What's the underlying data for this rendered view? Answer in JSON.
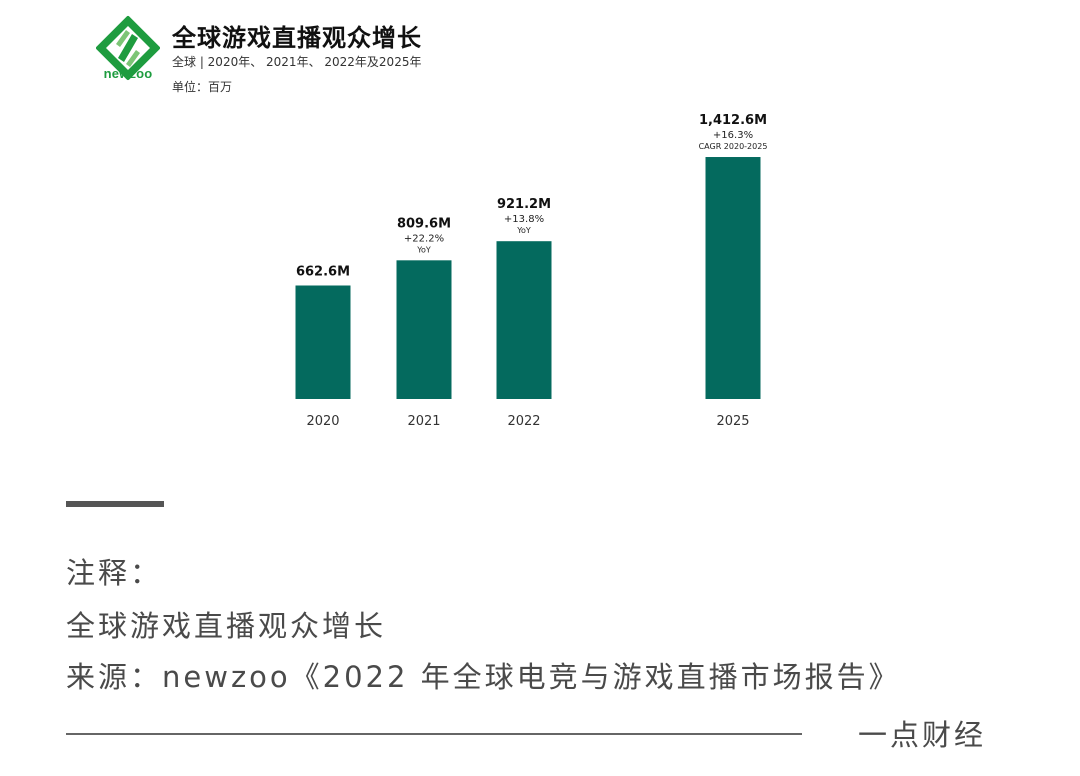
{
  "header": {
    "logo_text": "newzoo",
    "title": "全球游戏直播观众增长",
    "subtitle": "全球 | 2020年、 2021年、 2022年及2025年",
    "unit": "单位：百万"
  },
  "colors": {
    "bar": "#046a5e",
    "logo_green": "#1e9c3f",
    "note_text": "#4a4a4a"
  },
  "chart_data": {
    "type": "bar",
    "categories": [
      "2020",
      "2021",
      "2022",
      "2025"
    ],
    "values": [
      662.6,
      809.6,
      921.2,
      1412.6
    ],
    "value_labels": [
      "662.6M",
      "809.6M",
      "921.2M",
      "1,412.6M"
    ],
    "growth_labels": [
      "",
      "+22.2%",
      "+13.8%",
      "+16.3%"
    ],
    "growth_notes": [
      "",
      "YoY",
      "YoY",
      "CAGR 2020-2025"
    ],
    "title": "全球游戏直播观众增长",
    "xlabel": "",
    "ylabel": "",
    "grid": false,
    "legend": "none"
  },
  "notes": {
    "heading": "注释：",
    "subject": "全球游戏直播观众增长",
    "source": "来源：newzoo《2022 年全球电竞与游戏直播市场报告》"
  },
  "footer": {
    "brand": "一点财经"
  }
}
